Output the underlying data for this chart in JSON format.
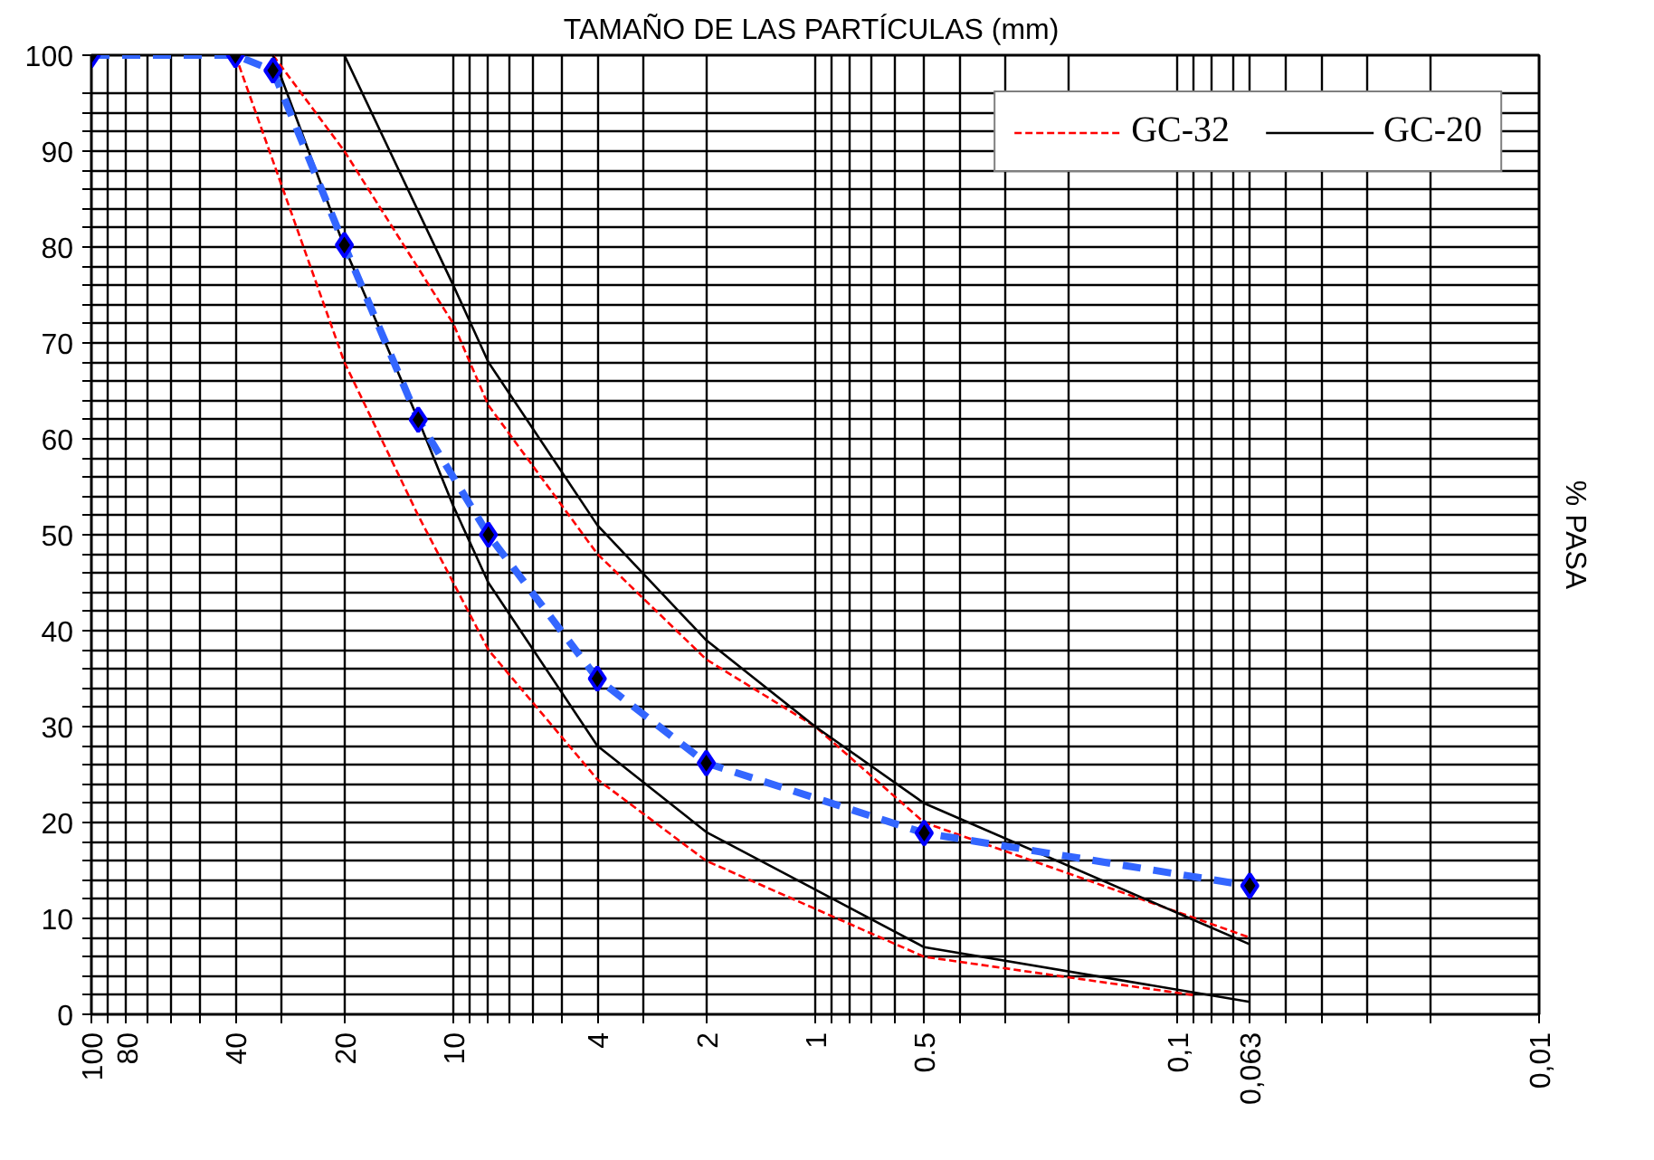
{
  "chart_data": {
    "type": "line",
    "title": "TAMAÑO DE LAS PARTÍCULAS  (mm)",
    "ylabel": "% PASA",
    "log": "x",
    "xlim": [
      100,
      0.01
    ],
    "ylim": [
      0,
      100
    ],
    "xticks": [
      100,
      {
        "value": 90,
        "label": null
      },
      80,
      {
        "value": 70,
        "label": null
      },
      {
        "value": 60,
        "label": null
      },
      {
        "value": 50,
        "label": null
      },
      40,
      {
        "value": 30,
        "label": null
      },
      20,
      10,
      {
        "value": 9,
        "label": null
      },
      {
        "value": 8,
        "label": null
      },
      {
        "value": 7,
        "label": null
      },
      {
        "value": 6,
        "label": null
      },
      {
        "value": 5,
        "label": null
      },
      4,
      {
        "value": 3,
        "label": null
      },
      2,
      1,
      {
        "value": 0.9,
        "label": null
      },
      {
        "value": 0.8,
        "label": null
      },
      {
        "value": 0.7,
        "label": null
      },
      {
        "value": 0.6,
        "label": null
      },
      0.5,
      {
        "value": 0.4,
        "label": null
      },
      {
        "value": 0.3,
        "label": null
      },
      {
        "value": 0.2,
        "label": null
      },
      {
        "value": 0.1,
        "label": "0,1"
      },
      {
        "value": 0.09,
        "label": null
      },
      {
        "value": 0.08,
        "label": null
      },
      {
        "value": 0.07,
        "label": null
      },
      {
        "value": 0.063,
        "label": "0,063"
      },
      {
        "value": 0.05,
        "label": null
      },
      {
        "value": 0.04,
        "label": null
      },
      {
        "value": 0.03,
        "label": null
      },
      {
        "value": 0.02,
        "label": null
      },
      {
        "value": 0.01,
        "label": "0,01"
      }
    ],
    "yticks": [
      0,
      {
        "value": 2,
        "label": null
      },
      {
        "value": 4,
        "label": null
      },
      {
        "value": 6,
        "label": null
      },
      {
        "value": 8,
        "label": null
      },
      10,
      {
        "value": 12,
        "label": null
      },
      {
        "value": 14,
        "label": null
      },
      {
        "value": 16,
        "label": null
      },
      {
        "value": 18,
        "label": null
      },
      20,
      {
        "value": 22,
        "label": null
      },
      {
        "value": 24,
        "label": null
      },
      {
        "value": 26,
        "label": null
      },
      {
        "value": 28,
        "label": null
      },
      30,
      {
        "value": 32,
        "label": null
      },
      {
        "value": 34,
        "label": null
      },
      {
        "value": 36,
        "label": null
      },
      {
        "value": 38,
        "label": null
      },
      40,
      {
        "value": 42,
        "label": null
      },
      {
        "value": 44,
        "label": null
      },
      {
        "value": 46,
        "label": null
      },
      {
        "value": 48,
        "label": null
      },
      50,
      {
        "value": 52,
        "label": null
      },
      {
        "value": 54,
        "label": null
      },
      {
        "value": 56,
        "label": null
      },
      {
        "value": 58,
        "label": null
      },
      60,
      {
        "value": 62,
        "label": null
      },
      {
        "value": 64,
        "label": null
      },
      {
        "value": 66,
        "label": null
      },
      {
        "value": 68,
        "label": null
      },
      70,
      {
        "value": 72,
        "label": null
      },
      {
        "value": 74,
        "label": null
      },
      {
        "value": 76,
        "label": null
      },
      {
        "value": 78,
        "label": null
      },
      80,
      {
        "value": 82,
        "label": null
      },
      {
        "value": 84,
        "label": null
      },
      {
        "value": 86,
        "label": null
      },
      {
        "value": 88,
        "label": null
      },
      90,
      {
        "value": 92,
        "label": null
      },
      {
        "value": 94,
        "label": null
      },
      {
        "value": 96,
        "label": null
      },
      100
    ],
    "grid": true,
    "legend": "top right",
    "series": [
      {
        "name": "GC-32",
        "color": "#ff0000",
        "line_style": "dashed",
        "marker": "none",
        "x": [
          31.5,
          20,
          10,
          8,
          4,
          2,
          1,
          0.5,
          0.063
        ],
        "values": [
          100,
          90,
          72,
          63.5,
          48,
          37,
          30,
          20,
          8
        ]
      },
      {
        "color": "#ff0000",
        "line_style": "dashed",
        "marker": "none",
        "x": [
          40,
          20,
          12.5,
          10,
          8,
          4,
          2,
          1,
          0.5,
          0.09
        ],
        "values": [
          100,
          68,
          52,
          45,
          38,
          24.5,
          16,
          11,
          6,
          2
        ]
      },
      {
        "name": "GC-20",
        "color": "#000000",
        "line_style": "solid",
        "marker": "none",
        "x": [
          20,
          10,
          8,
          4,
          2,
          1,
          0.5,
          0.063
        ],
        "values": [
          100,
          76,
          68,
          51,
          39,
          30,
          22,
          7.3
        ]
      },
      {
        "color": "#000000",
        "line_style": "solid",
        "marker": "none",
        "x": [
          31.5,
          20,
          12.5,
          10,
          8,
          4,
          2,
          1,
          0.5,
          0.063
        ],
        "values": [
          100,
          80,
          62,
          53,
          45,
          28,
          19,
          13,
          7,
          1.3
        ]
      },
      {
        "color": "#3366ff",
        "line_style": "dashed",
        "marker": "diamond",
        "x": [
          100,
          40,
          31.5,
          20,
          12.5,
          8,
          4,
          2,
          0.5,
          0.063
        ],
        "values": [
          100,
          100,
          98.4,
          80.2,
          62,
          50,
          35,
          26.2,
          18.9,
          13.4
        ]
      }
    ]
  }
}
